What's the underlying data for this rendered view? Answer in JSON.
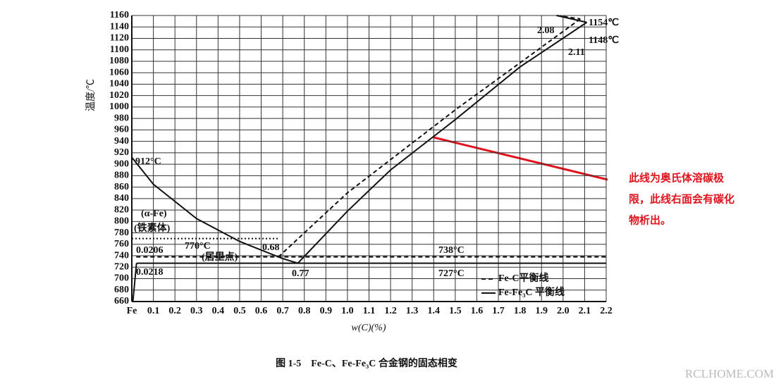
{
  "chart_data": {
    "type": "line",
    "x_label": "w(C)(%)",
    "y_label": "温度/℃",
    "caption": "图 1-5　Fe-C、Fe-Fe₃C 合金钢的固态相变",
    "xlim": [
      0,
      2.2
    ],
    "ylim": [
      660,
      1160
    ],
    "xticks": [
      {
        "value": 0,
        "label": "Fe"
      },
      0.1,
      0.2,
      0.3,
      0.4,
      0.5,
      0.6,
      0.7,
      0.8,
      0.9,
      {
        "value": 1.0,
        "label": "1.0"
      },
      1.1,
      1.2,
      1.3,
      1.4,
      1.5,
      1.6,
      1.7,
      1.8,
      1.9,
      {
        "value": 2.0,
        "label": "2.0"
      },
      2.1,
      2.2
    ],
    "yticks": [
      660,
      680,
      700,
      720,
      740,
      760,
      780,
      800,
      820,
      840,
      860,
      880,
      900,
      920,
      940,
      960,
      980,
      1000,
      1020,
      1040,
      1060,
      1080,
      1100,
      1120,
      1140,
      1160
    ],
    "grid": true,
    "series": [
      {
        "name": "Fe-C平衡线",
        "color": "#111",
        "dash": "6,4",
        "x": [
          0.68,
          1.0,
          1.5,
          2.08,
          null,
          0.0206,
          2.2,
          null,
          1.97,
          2.08
        ],
        "values": [
          738,
          850,
          995,
          1154,
          null,
          738,
          738,
          null,
          1160,
          1154
        ]
      },
      {
        "name": "Fe-Fe₃C 平衡线",
        "color": "#111",
        "dash": "none",
        "x": [
          0,
          0.1,
          0.2,
          0.3,
          0.4,
          0.5,
          0.6,
          0.7,
          0.77,
          1.0,
          1.2,
          1.5,
          1.8,
          2.11,
          null,
          0.0218,
          2.2,
          null,
          0.005,
          0.0218,
          null,
          1.97,
          2.11
        ],
        "values": [
          912,
          865,
          835,
          805,
          785,
          765,
          750,
          735,
          727,
          818,
          890,
          978,
          1070,
          1148,
          null,
          727,
          727,
          null,
          660,
          727,
          null,
          1160,
          1148
        ]
      },
      {
        "color": "#111",
        "dash": "2,3",
        "x": [
          0,
          0.68
        ],
        "values": [
          770,
          770
        ]
      }
    ],
    "annotations": [
      "912°C",
      "(α-Fe)",
      "(铁素体)",
      "770°C",
      "(居里点)",
      "0.0206",
      "0.0218",
      "0.68",
      "0.77",
      "738°C",
      "727°C",
      "2.08",
      "2.11",
      "1154℃",
      "1148℃"
    ],
    "note": [
      "此线为奥氏体溶碳极",
      "限，此线右面会有碳化",
      "物析出。"
    ],
    "watermark": "RCLHOME.COM"
  }
}
